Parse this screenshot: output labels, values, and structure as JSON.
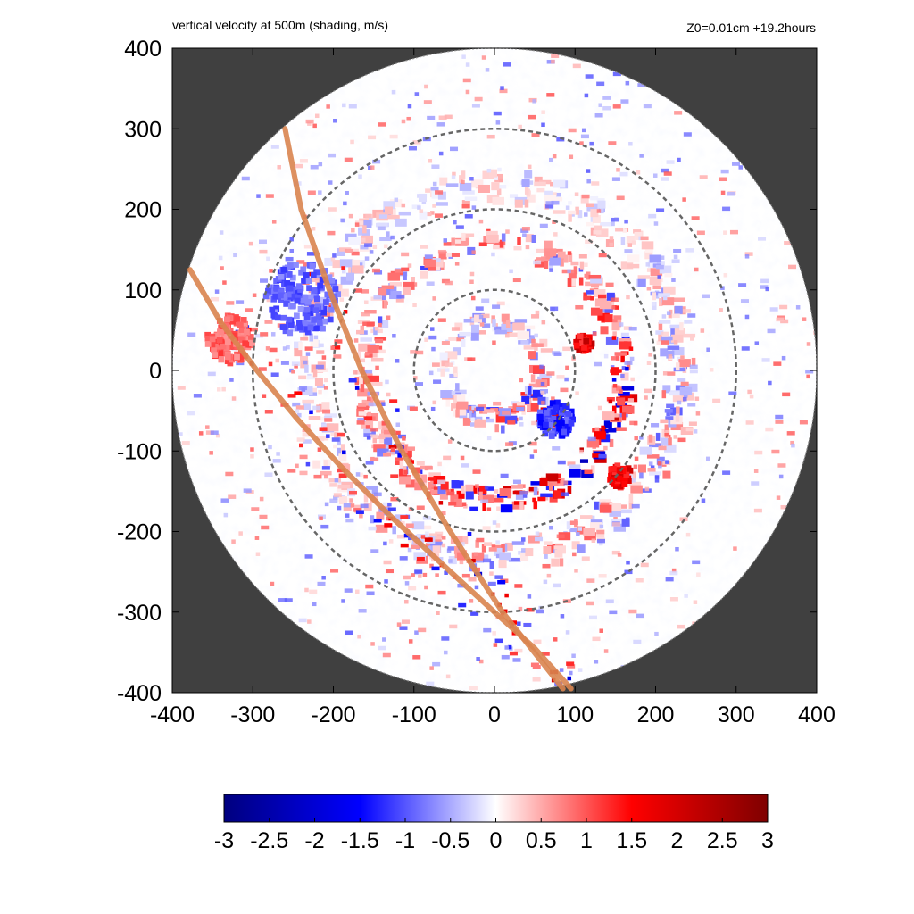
{
  "chart_data": {
    "type": "heatmap",
    "title": "vertical velocity at 500m (shading, m/s)",
    "subtitle": "Z0=0.01cm  +19.2hours",
    "xlabel": "",
    "ylabel": "",
    "xlim": [
      -400,
      400
    ],
    "ylim": [
      -400,
      400
    ],
    "x_ticks": [
      -400,
      -300,
      -200,
      -100,
      0,
      100,
      200,
      300,
      400
    ],
    "y_ticks": [
      400,
      300,
      200,
      100,
      0,
      -100,
      -200,
      -300,
      -400
    ],
    "domain_radius": 400,
    "outside_domain_color": "#404040",
    "grid": false,
    "reference_circles": {
      "radii": [
        100,
        200,
        300
      ],
      "style": "dashed",
      "color": "#666666"
    },
    "tracks": [
      {
        "color": "#d9844f",
        "points": [
          [
            -260,
            300
          ],
          [
            -240,
            200
          ],
          [
            -205,
            100
          ],
          [
            -165,
            0
          ],
          [
            -115,
            -100
          ],
          [
            -55,
            -200
          ],
          [
            10,
            -300
          ],
          [
            85,
            -395
          ]
        ]
      },
      {
        "color": "#d9844f",
        "points": [
          [
            -378,
            125
          ],
          [
            -340,
            60
          ],
          [
            -295,
            0
          ],
          [
            -245,
            -60
          ],
          [
            -190,
            -120
          ],
          [
            -130,
            -180
          ],
          [
            -60,
            -245
          ],
          [
            0,
            -300
          ],
          [
            50,
            -345
          ],
          [
            95,
            -395
          ]
        ]
      }
    ],
    "features": [
      {
        "type": "ring",
        "radius": 60,
        "width": 25,
        "polarity": "mixed",
        "strength": 0.45
      },
      {
        "type": "ring",
        "radius": 160,
        "width": 28,
        "polarity": "positive",
        "strength": 0.75
      },
      {
        "type": "ring",
        "radius": 230,
        "width": 40,
        "polarity": "mixed",
        "strength": 0.35
      },
      {
        "type": "blob",
        "x": 65,
        "y": -55,
        "r": 12,
        "value": 2.8
      },
      {
        "type": "blob",
        "x": 110,
        "y": 35,
        "r": 10,
        "value": 2.3
      },
      {
        "type": "blob",
        "x": 155,
        "y": -130,
        "r": 14,
        "value": 2.2
      },
      {
        "type": "blob",
        "x": 75,
        "y": -60,
        "r": 22,
        "value": -1.6
      },
      {
        "type": "blob",
        "x": -240,
        "y": 90,
        "r": 45,
        "value": -1.2
      },
      {
        "type": "blob",
        "x": -330,
        "y": 40,
        "r": 30,
        "value": 1.2
      }
    ],
    "colorbar": {
      "min": -3,
      "max": 3,
      "ticks": [
        "-3",
        "-2.5",
        "-2",
        "-1.5",
        "-1",
        "-0.5",
        "0",
        "0.5",
        "1",
        "1.5",
        "2",
        "2.5",
        "3"
      ],
      "colors": [
        "#00007f",
        "#0000ff",
        "#ffffff",
        "#ff0000",
        "#7f0000"
      ]
    }
  }
}
